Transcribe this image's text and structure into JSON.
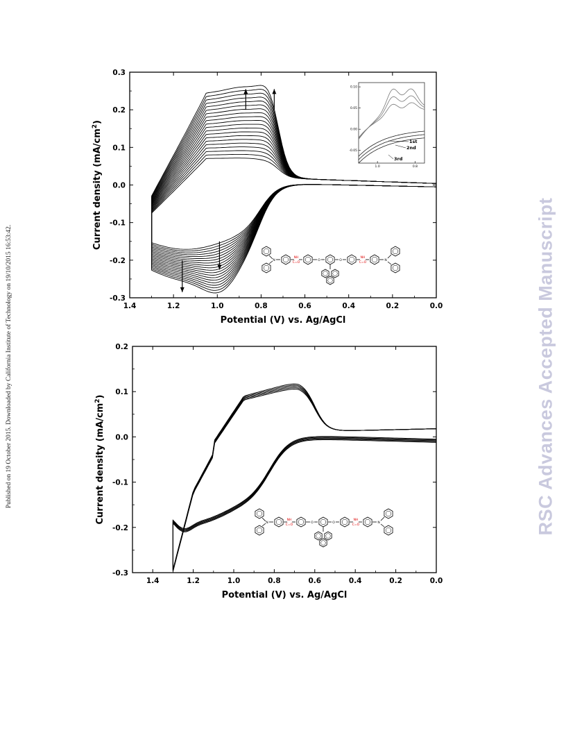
{
  "side_note": "Published on 19 October 2015. Downloaded by California Institute of Technology on 19/10/2015 16:53:42.",
  "watermark": "RSC Advances Accepted Manuscript",
  "chart_data": [
    {
      "type": "line",
      "xlabel": "Potential (V) vs. Ag/AgCl",
      "ylabel": "Current density (mA/cm",
      "ylabel_sup": "2",
      "ylabel_end": ")",
      "xlim": [
        1.4,
        0.0
      ],
      "ylim": [
        -0.3,
        0.3
      ],
      "xticks": [
        "1.4",
        "1.2",
        "1.0",
        "0.8",
        "0.6",
        "0.4",
        "0.2",
        "0.0"
      ],
      "yticks": [
        "0.3",
        "0.2",
        "0.1",
        "0.0",
        "-0.1",
        "-0.2",
        "-0.3"
      ],
      "grid": false,
      "n_cycles": 20,
      "anodic_peak_first_cycle": 0.05,
      "anodic_peak_last_cycle": 0.24,
      "cathodic_peak_first_cycle": -0.18,
      "cathodic_peak_last_cycle": -0.26,
      "inset": {
        "xticks": [
          "1.0",
          "0.8"
        ],
        "yticks": [
          "0.10",
          "0.05",
          "0.00",
          "-0.05"
        ],
        "labels": [
          "1st",
          "2nd",
          "3rd"
        ]
      }
    },
    {
      "type": "line",
      "xlabel": "Potential (V) vs. Ag/AgCl",
      "ylabel": "Current density (mA/cm",
      "ylabel_sup": "2",
      "ylabel_end": ")",
      "xlim": [
        1.5,
        0.0
      ],
      "ylim": [
        -0.3,
        0.2
      ],
      "xticks": [
        "1.4",
        "1.2",
        "1.0",
        "0.8",
        "0.6",
        "0.4",
        "0.2",
        "0.0"
      ],
      "yticks": [
        "0.2",
        "0.1",
        "0.0",
        "-0.1",
        "-0.2",
        "-0.3"
      ],
      "grid": false,
      "anodic_peak": 0.12,
      "anodic_peak_potential": 0.65,
      "cathodic_peak": -0.205,
      "cathodic_peak_potential": 1.2
    }
  ],
  "structure_labels": {
    "nh": "NH",
    "co": "C=O",
    "n": "N",
    "o": "O"
  }
}
